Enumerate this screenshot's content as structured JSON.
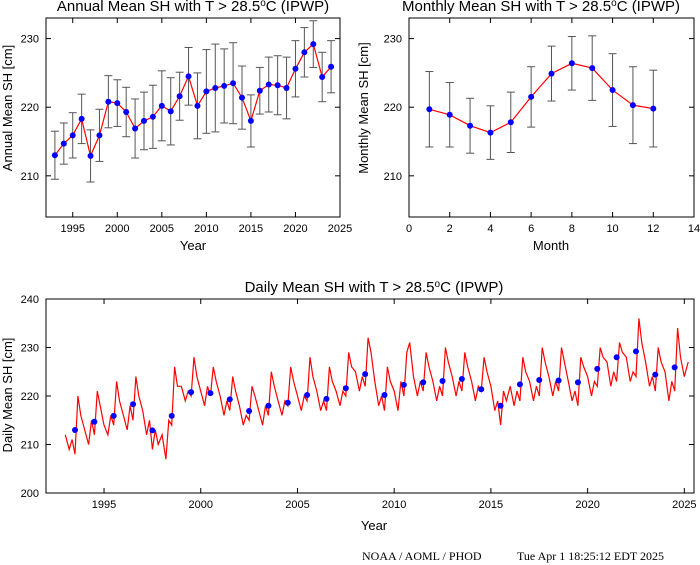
{
  "footer": {
    "source": "NOAA / AOML / PHOD",
    "timestamp": "Tue Apr  1 18:25:12 EDT 2025"
  },
  "colors": {
    "line": "#ff0000",
    "marker": "#0000ff",
    "errorbar": "#555555"
  },
  "chart_data": [
    {
      "id": "annual",
      "type": "line",
      "title_main": "Annual Mean SH with T > 28.5",
      "title_sup": "o",
      "title_tail": "C (IPWP)",
      "xlabel": "Year",
      "ylabel": "Annual Mean SH [cm]",
      "xlim": [
        1992,
        2025
      ],
      "ylim": [
        204,
        233
      ],
      "xticks": [
        1995,
        2000,
        2005,
        2010,
        2015,
        2020,
        2025
      ],
      "yticks": [
        210,
        220,
        230
      ],
      "markers": true,
      "error_bars": true,
      "x": [
        1993,
        1994,
        1995,
        1996,
        1997,
        1998,
        1999,
        2000,
        2001,
        2002,
        2003,
        2004,
        2005,
        2006,
        2007,
        2008,
        2009,
        2010,
        2011,
        2012,
        2013,
        2014,
        2015,
        2016,
        2017,
        2018,
        2019,
        2020,
        2021,
        2022,
        2023,
        2024
      ],
      "y": [
        213.0,
        214.7,
        215.9,
        218.3,
        212.9,
        215.9,
        220.8,
        220.6,
        219.3,
        216.9,
        218.0,
        218.6,
        220.2,
        219.4,
        221.6,
        224.5,
        220.2,
        222.3,
        222.8,
        223.1,
        223.5,
        221.4,
        218.0,
        222.4,
        223.3,
        223.2,
        222.8,
        225.6,
        228.0,
        229.2,
        224.4,
        225.9
      ],
      "err": [
        3.5,
        3.0,
        3.3,
        3.6,
        3.8,
        3.8,
        3.8,
        3.4,
        3.6,
        4.3,
        4.2,
        4.6,
        5.1,
        4.9,
        3.5,
        4.2,
        4.8,
        6.1,
        6.4,
        5.4,
        5.9,
        4.6,
        3.8,
        3.4,
        4.0,
        4.3,
        4.5,
        4.1,
        3.6,
        3.4,
        3.6,
        3.8
      ]
    },
    {
      "id": "monthly",
      "type": "line",
      "title_main": "Monthly Mean SH with T > 28.5",
      "title_sup": "o",
      "title_tail": "C (IPWP)",
      "xlabel": "Month",
      "ylabel": "Monthly Mean SH [cm]",
      "xlim": [
        0,
        14
      ],
      "ylim": [
        204,
        233
      ],
      "xticks": [
        0,
        2,
        4,
        6,
        8,
        10,
        12,
        14
      ],
      "yticks": [
        210,
        220,
        230
      ],
      "markers": true,
      "error_bars": true,
      "x": [
        1,
        2,
        3,
        4,
        5,
        6,
        7,
        8,
        9,
        10,
        11,
        12
      ],
      "y": [
        219.7,
        218.9,
        217.3,
        216.3,
        217.8,
        221.5,
        224.9,
        226.4,
        225.7,
        222.5,
        220.3,
        219.8
      ],
      "err": [
        5.5,
        4.7,
        4.0,
        3.9,
        4.4,
        4.4,
        4.0,
        3.9,
        4.7,
        5.3,
        5.6,
        5.6
      ]
    },
    {
      "id": "daily",
      "type": "line",
      "title_main": "Daily Mean SH with T > 28.5",
      "title_sup": "o",
      "title_tail": "C (IPWP)",
      "xlabel": "Year",
      "ylabel": "Daily Mean SH [cm]",
      "xlim": [
        1992,
        2025.5
      ],
      "ylim": [
        200,
        240
      ],
      "xticks": [
        1995,
        2000,
        2005,
        2010,
        2015,
        2020,
        2025
      ],
      "yticks": [
        200,
        210,
        220,
        230,
        240
      ],
      "markers": true,
      "error_bars": false,
      "series": [
        {
          "role": "daily line",
          "x": [
            1993.0,
            1993.2,
            1993.35,
            1993.5,
            1993.65,
            1993.8,
            1994.0,
            1994.2,
            1994.35,
            1994.5,
            1994.65,
            1994.8,
            1995.0,
            1995.2,
            1995.35,
            1995.5,
            1995.65,
            1995.8,
            1996.0,
            1996.2,
            1996.35,
            1996.5,
            1996.65,
            1996.8,
            1997.0,
            1997.2,
            1997.35,
            1997.5,
            1997.65,
            1997.8,
            1998.0,
            1998.2,
            1998.35,
            1998.5,
            1998.65,
            1998.8,
            1999.0,
            1999.2,
            1999.35,
            1999.5,
            1999.65,
            1999.8,
            2000.0,
            2000.2,
            2000.35,
            2000.5,
            2000.65,
            2000.8,
            2001.0,
            2001.2,
            2001.35,
            2001.5,
            2001.65,
            2001.8,
            2002.0,
            2002.2,
            2002.35,
            2002.5,
            2002.65,
            2002.8,
            2003.0,
            2003.2,
            2003.35,
            2003.5,
            2003.65,
            2003.8,
            2004.0,
            2004.2,
            2004.35,
            2004.5,
            2004.65,
            2004.8,
            2005.0,
            2005.2,
            2005.35,
            2005.5,
            2005.65,
            2005.8,
            2006.0,
            2006.2,
            2006.35,
            2006.5,
            2006.65,
            2006.8,
            2007.0,
            2007.2,
            2007.35,
            2007.5,
            2007.65,
            2007.8,
            2008.0,
            2008.2,
            2008.35,
            2008.5,
            2008.65,
            2008.8,
            2009.0,
            2009.2,
            2009.35,
            2009.5,
            2009.65,
            2009.8,
            2010.0,
            2010.2,
            2010.35,
            2010.5,
            2010.65,
            2010.8,
            2011.0,
            2011.2,
            2011.35,
            2011.5,
            2011.65,
            2011.8,
            2012.0,
            2012.2,
            2012.35,
            2012.5,
            2012.65,
            2012.8,
            2013.0,
            2013.2,
            2013.35,
            2013.5,
            2013.65,
            2013.8,
            2014.0,
            2014.2,
            2014.35,
            2014.5,
            2014.65,
            2014.8,
            2015.0,
            2015.2,
            2015.35,
            2015.5,
            2015.65,
            2015.8,
            2016.0,
            2016.2,
            2016.35,
            2016.5,
            2016.65,
            2016.8,
            2017.0,
            2017.2,
            2017.35,
            2017.5,
            2017.65,
            2017.8,
            2018.0,
            2018.2,
            2018.35,
            2018.5,
            2018.65,
            2018.8,
            2019.0,
            2019.2,
            2019.35,
            2019.5,
            2019.65,
            2019.8,
            2020.0,
            2020.2,
            2020.35,
            2020.5,
            2020.65,
            2020.8,
            2021.0,
            2021.2,
            2021.35,
            2021.5,
            2021.65,
            2021.8,
            2022.0,
            2022.2,
            2022.35,
            2022.5,
            2022.65,
            2022.8,
            2023.0,
            2023.2,
            2023.35,
            2023.5,
            2023.65,
            2023.8,
            2024.0,
            2024.2,
            2024.35,
            2024.5,
            2024.65,
            2024.8,
            2025.0,
            2025.2
          ],
          "y": [
            212,
            209,
            211,
            208,
            220,
            216,
            213,
            210,
            215,
            212,
            221,
            218,
            214,
            212,
            216,
            214,
            223,
            219,
            216,
            213,
            218,
            215,
            224,
            220,
            217,
            212,
            215,
            209,
            213,
            210,
            212,
            207,
            215,
            214,
            226,
            222,
            222,
            219,
            221,
            220,
            228,
            224,
            221,
            218,
            222,
            220,
            226,
            223,
            220,
            216,
            219,
            217,
            224,
            221,
            218,
            214,
            216,
            215,
            222,
            220,
            217,
            214,
            218,
            216,
            225,
            222,
            219,
            216,
            219,
            218,
            226,
            223,
            220,
            217,
            220,
            219,
            228,
            224,
            221,
            217,
            219,
            217,
            226,
            223,
            221,
            218,
            221,
            220,
            229,
            226,
            225,
            221,
            224,
            222,
            232,
            229,
            223,
            218,
            220,
            217,
            226,
            223,
            221,
            217,
            223,
            220,
            229,
            231,
            224,
            220,
            223,
            221,
            229,
            226,
            223,
            219,
            222,
            220,
            230,
            227,
            224,
            220,
            223,
            221,
            229,
            226,
            223,
            219,
            222,
            221,
            228,
            225,
            222,
            217,
            219,
            214,
            221,
            219,
            222,
            218,
            221,
            219,
            228,
            225,
            223,
            219,
            222,
            220,
            230,
            227,
            224,
            220,
            223,
            221,
            230,
            227,
            223,
            219,
            221,
            218,
            228,
            226,
            224,
            220,
            223,
            222,
            230,
            228,
            227,
            222,
            225,
            223,
            231,
            229,
            228,
            223,
            225,
            224,
            236,
            231,
            227,
            222,
            224,
            221,
            230,
            227,
            225,
            219,
            223,
            221,
            234,
            228,
            224,
            227
          ]
        },
        {
          "role": "annual markers",
          "x": [
            1993.5,
            1994.5,
            1995.5,
            1996.5,
            1997.5,
            1998.5,
            1999.5,
            2000.5,
            2001.5,
            2002.5,
            2003.5,
            2004.5,
            2005.5,
            2006.5,
            2007.5,
            2008.5,
            2009.5,
            2010.5,
            2011.5,
            2012.5,
            2013.5,
            2014.5,
            2015.5,
            2016.5,
            2017.5,
            2018.5,
            2019.5,
            2020.5,
            2021.5,
            2022.5,
            2023.5,
            2024.5
          ],
          "y": [
            213.0,
            214.7,
            215.9,
            218.3,
            212.9,
            215.9,
            220.8,
            220.6,
            219.3,
            216.9,
            218.0,
            218.6,
            220.2,
            219.4,
            221.6,
            224.5,
            220.2,
            222.3,
            222.8,
            223.1,
            223.5,
            221.4,
            218.0,
            222.4,
            223.3,
            223.2,
            222.8,
            225.6,
            228.0,
            229.2,
            224.4,
            225.9
          ]
        }
      ]
    }
  ]
}
